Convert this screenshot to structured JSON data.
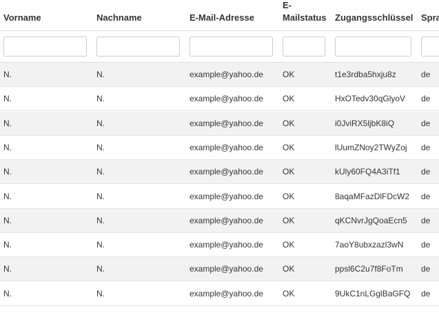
{
  "table": {
    "header": [
      "Vorname",
      "Nachname",
      "E-Mail-Adresse",
      "E-Mailstatus",
      "Zugangsschlüssel",
      "Spra"
    ],
    "rows": [
      [
        "N.",
        "N.",
        "example@yahoo.de",
        "OK",
        "t1e3rdba5hxju8z",
        "de"
      ],
      [
        "N.",
        "N.",
        "example@yahoo.de",
        "OK",
        "HxOTedv30qGlyoV",
        "de"
      ],
      [
        "N.",
        "N.",
        "example@yahoo.de",
        "OK",
        "i0JviRX5ljbK8iQ",
        "de"
      ],
      [
        "N.",
        "N.",
        "example@yahoo.de",
        "OK",
        "lUumZNoy2TWyZoj",
        "de"
      ],
      [
        "N.",
        "N.",
        "example@yahoo.de",
        "OK",
        "kUly60FQ4A3iTf1",
        "de"
      ],
      [
        "N.",
        "N.",
        "example@yahoo.de",
        "OK",
        "8aqaMFazDlFDcW2",
        "de"
      ],
      [
        "N.",
        "N.",
        "example@yahoo.de",
        "OK",
        "qKCNvrJgQoaEcn5",
        "de"
      ],
      [
        "N.",
        "N.",
        "example@yahoo.de",
        "OK",
        "7aoY8ubxzazl3wN",
        "de"
      ],
      [
        "N.",
        "N.",
        "example@yahoo.de",
        "OK",
        "ppsl6C2u7f8FoTm",
        "de"
      ],
      [
        "N.",
        "N.",
        "example@yahoo.de",
        "OK",
        "9UkC1nLGglBaGFQ",
        "de"
      ]
    ]
  }
}
